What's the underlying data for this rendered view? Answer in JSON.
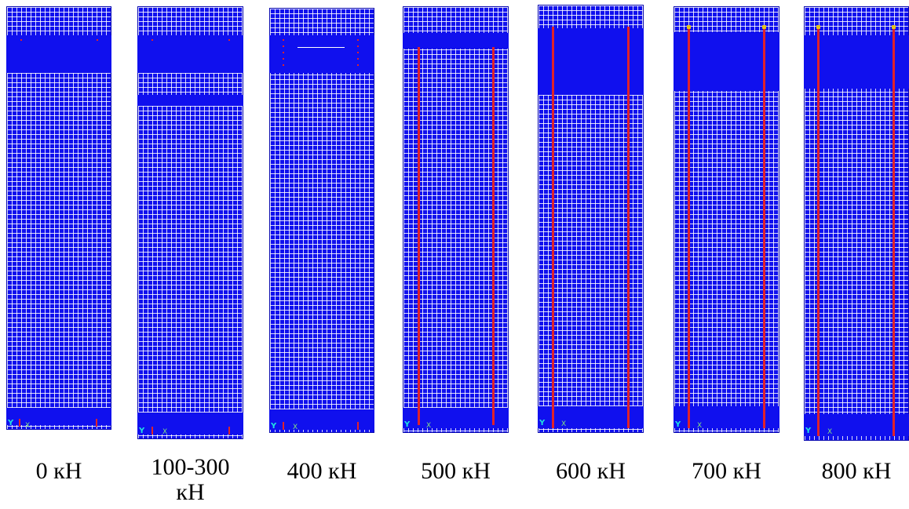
{
  "panels": [
    {
      "label": "0 кН"
    },
    {
      "label": "100-300 кН"
    },
    {
      "label": "400 кН"
    },
    {
      "label": "500 кН"
    },
    {
      "label": "600 кН"
    },
    {
      "label": "700 кН"
    },
    {
      "label": "800 кН"
    }
  ],
  "axis_triad": {
    "y": "Y",
    "x": "X"
  },
  "colors": {
    "mesh": "#1010ee",
    "crack": "#e0222a",
    "cap": "#e6c419"
  }
}
